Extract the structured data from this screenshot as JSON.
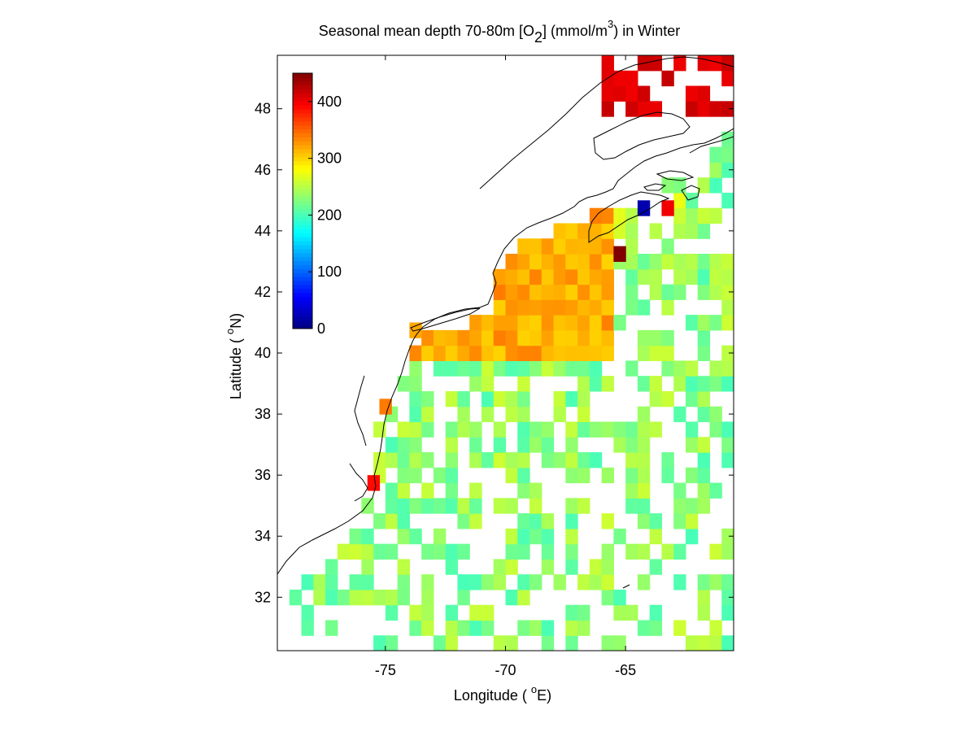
{
  "chart_data": {
    "type": "heatmap",
    "title_parts": {
      "pre": "Seasonal mean depth 70-80m [O",
      "sub": "2",
      "mid": "] (mmol/m",
      "sup": "3",
      "post": ") in  Winter"
    },
    "xlabel_parts": {
      "pre": "Longitude ( ",
      "sup": "o",
      "post": "E)"
    },
    "ylabel_parts": {
      "pre": "Latitude ( ",
      "sup": "o",
      "post": "N)"
    },
    "x_ticks": [
      -75,
      -70,
      -65
    ],
    "y_ticks": [
      32,
      34,
      36,
      38,
      40,
      42,
      44,
      46,
      48
    ],
    "xlim": [
      -79.5,
      -60.5
    ],
    "ylim": [
      30.25,
      49.75
    ],
    "colorbar": {
      "ticks": [
        0,
        100,
        200,
        300,
        400
      ],
      "range": [
        0,
        450
      ],
      "colormap": "jet",
      "location": "top-left inside map"
    },
    "grid": false,
    "cell_size_deg": 0.5,
    "description_regions": {
      "gulf_of_maine_and_shelf_north_of_40N": "300-340",
      "slope_and_open_ocean_south_of_40N": "200-260",
      "labrador_gulf_st_lawrence_NE_corner": "400-420",
      "cape_hatteras_cell": "390",
      "nova_scotia_low_cell": "20",
      "nova_scotia_high_cell": "450"
    }
  }
}
